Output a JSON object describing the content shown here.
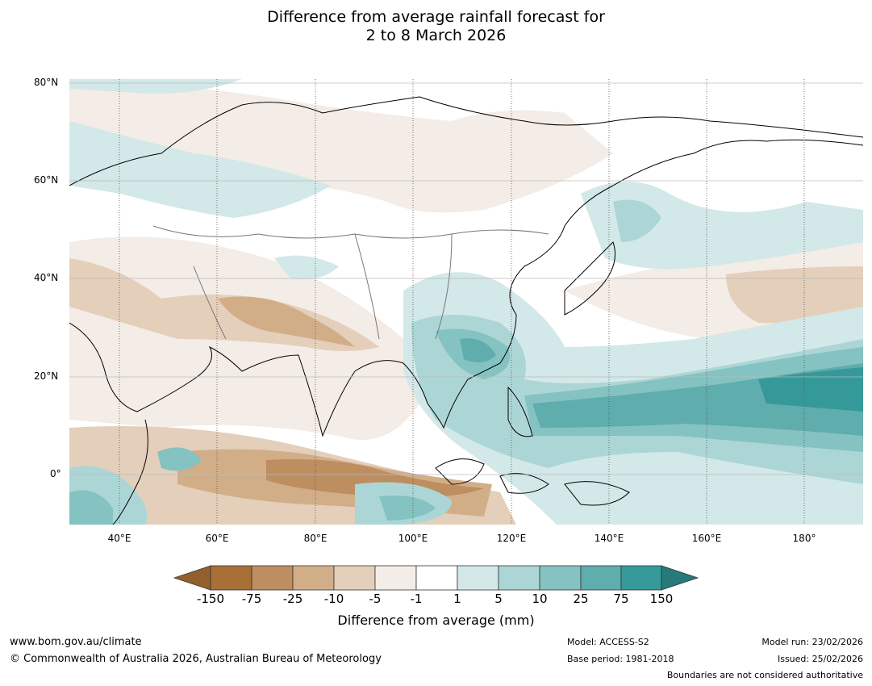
{
  "title": {
    "line1": "Difference from average rainfall forecast for",
    "line2": "2 to 8 March 2026"
  },
  "map": {
    "lat_labels": [
      "80°N",
      "60°N",
      "40°N",
      "20°N",
      "0°"
    ],
    "lon_labels": [
      "40°E",
      "60°E",
      "80°E",
      "100°E",
      "120°E",
      "140°E",
      "160°E",
      "180°"
    ],
    "extent": {
      "lon_min": 30,
      "lon_max": 192,
      "lat_min": -10,
      "lat_max": 81
    }
  },
  "colorbar": {
    "ticks": [
      "-150",
      "-75",
      "-25",
      "-10",
      "-5",
      "-1",
      "1",
      "5",
      "10",
      "25",
      "75",
      "150"
    ],
    "colors": [
      "#a86f36",
      "#bd8e5f",
      "#d2ae88",
      "#e4cfbb",
      "#f4ece6",
      "#ffffff",
      "#d3e8e8",
      "#acd6d6",
      "#85c2c2",
      "#5fadad",
      "#35999a"
    ],
    "low_extend_color": "#92612b",
    "high_extend_color": "#267a7a",
    "label": "Difference from average (mm)"
  },
  "footer": {
    "website": "www.bom.gov.au/climate",
    "copyright": "© Commonwealth of Australia 2026, Australian Bureau of Meteorology",
    "model": "Model: ACCESS-S2",
    "base_period": "Base period: 1981-2018",
    "model_run": "Model run: 23/02/2026",
    "issued": "Issued: 25/02/2026",
    "disclaimer": "Boundaries are not considered authoritative"
  }
}
